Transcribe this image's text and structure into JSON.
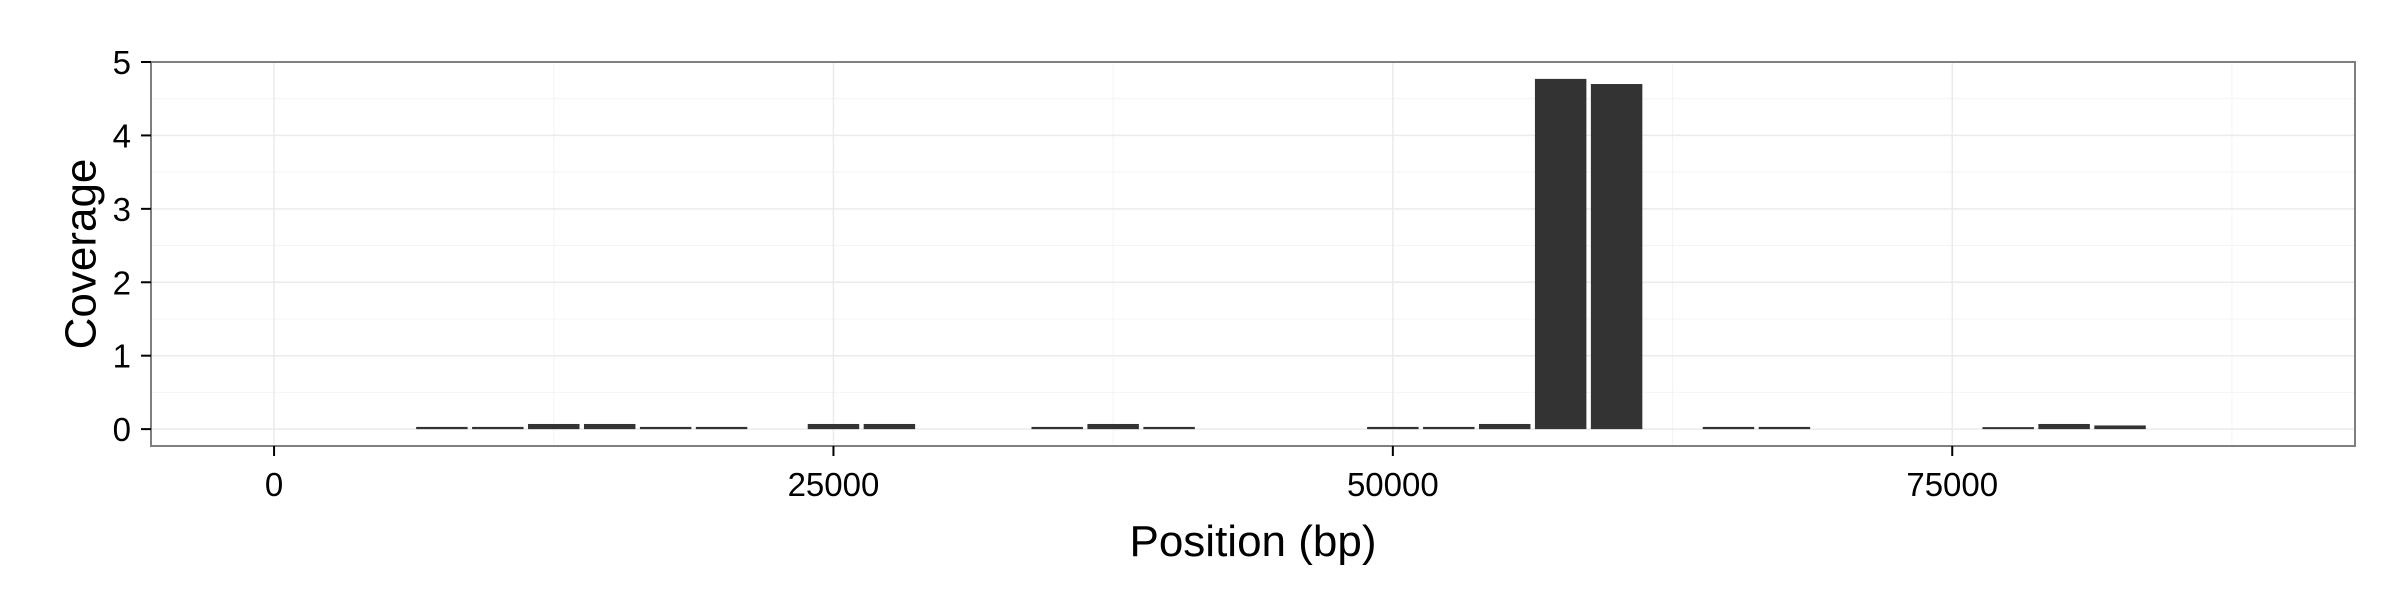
{
  "chart_data": {
    "type": "bar",
    "title": "",
    "xlabel": "Position (bp)",
    "ylabel": "Coverage",
    "xlim": [
      -5500,
      93000
    ],
    "ylim": [
      -0.23,
      5
    ],
    "xticks": [
      0,
      25000,
      50000,
      75000
    ],
    "xtick_labels": [
      "0",
      "25000",
      "50000",
      "75000"
    ],
    "yticks": [
      0,
      1,
      2,
      3,
      4,
      5
    ],
    "ytick_labels": [
      "0",
      "1",
      "2",
      "3",
      "4",
      "5"
    ],
    "grid": true,
    "legend": "none",
    "bar_width": 2300,
    "x": [
      7500,
      10000,
      12500,
      15000,
      17500,
      20000,
      25000,
      27500,
      35000,
      37500,
      40000,
      50000,
      52500,
      55000,
      57500,
      60000,
      65000,
      67500,
      77500,
      80000,
      82500
    ],
    "values": [
      0.03,
      0.03,
      0.07,
      0.07,
      0.03,
      0.03,
      0.07,
      0.07,
      0.03,
      0.07,
      0.03,
      0.03,
      0.03,
      0.07,
      4.77,
      4.7,
      0.03,
      0.03,
      0.02,
      0.07,
      0.05
    ],
    "colors": {
      "bar": "#333333",
      "panel_border": "#7f7f7f",
      "grid_major": "#ebebeb",
      "grid_minor": "#f4f4f4"
    }
  }
}
